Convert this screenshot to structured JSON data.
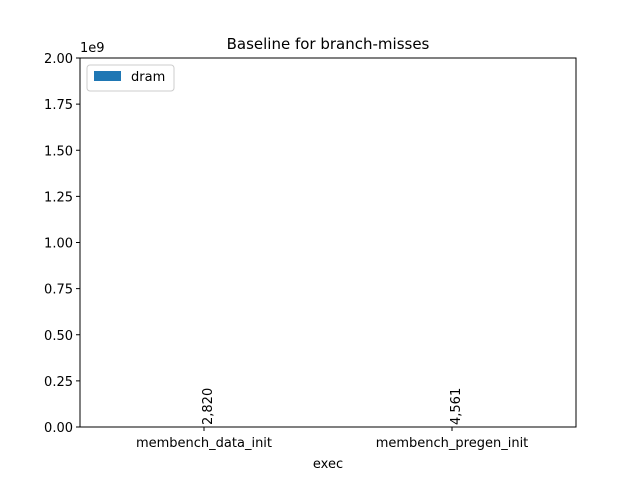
{
  "chart_data": {
    "type": "bar",
    "title": "Baseline for branch-misses",
    "xlabel": "exec",
    "ylabel": "",
    "offset_text": "1e9",
    "categories": [
      "membench_data_init",
      "membench_pregen_init"
    ],
    "series": [
      {
        "name": "dram",
        "values": [
          2820,
          4561
        ],
        "color": "#1f77b4"
      }
    ],
    "data_labels": [
      "2,820",
      "4,561"
    ],
    "ylim": [
      0,
      2000000000
    ],
    "yticks": [
      0,
      250000000,
      500000000,
      750000000,
      1000000000,
      1250000000,
      1500000000,
      1750000000,
      2000000000
    ],
    "ytick_labels": [
      "0.00",
      "0.25",
      "0.50",
      "0.75",
      "1.00",
      "1.25",
      "1.50",
      "1.75",
      "2.00"
    ],
    "legend_position": "top-left",
    "grid": false
  }
}
